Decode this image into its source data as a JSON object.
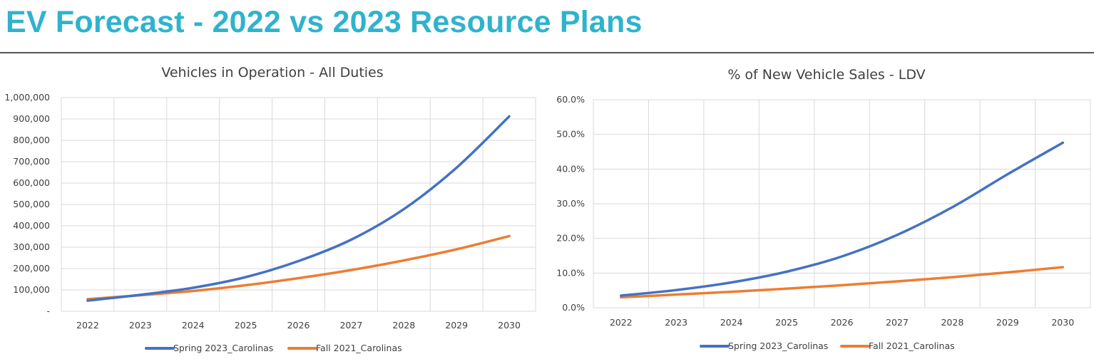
{
  "page": {
    "title": "EV Forecast - 2022 vs 2023 Resource Plans"
  },
  "colors": {
    "title": "#2fb3cd",
    "spring": "#4472c4",
    "fall": "#ed7d31"
  },
  "chart_data": [
    {
      "type": "line",
      "title": "Vehicles in Operation - All Duties",
      "categories": [
        "2022",
        "2023",
        "2024",
        "2025",
        "2026",
        "2027",
        "2028",
        "2029",
        "2030"
      ],
      "series": [
        {
          "name": "Spring 2023_Carolinas",
          "values": [
            50000,
            77000,
            110000,
            160000,
            235000,
            335000,
            478000,
            672000,
            912000
          ]
        },
        {
          "name": "Fall 2021_Carolinas",
          "values": [
            57000,
            75000,
            95000,
            122000,
            155000,
            193000,
            238000,
            290000,
            352000
          ]
        }
      ],
      "ylim": [
        0,
        1000000
      ],
      "yticks": [
        0,
        100000,
        200000,
        300000,
        400000,
        500000,
        600000,
        700000,
        800000,
        900000,
        1000000
      ],
      "ytick_labels": [
        "-",
        "100,000",
        "200,000",
        "300,000",
        "400,000",
        "500,000",
        "600,000",
        "700,000",
        "800,000",
        "900,000",
        "1,000,000"
      ],
      "xlabel": "",
      "ylabel": "",
      "legend": "bottom",
      "grid": true
    },
    {
      "type": "line",
      "title": "% of New Vehicle Sales - LDV",
      "categories": [
        "2022",
        "2023",
        "2024",
        "2025",
        "2026",
        "2027",
        "2028",
        "2029",
        "2030"
      ],
      "series": [
        {
          "name": "Spring 2023_Carolinas",
          "values": [
            3.5,
            5.1,
            7.3,
            10.4,
            14.8,
            21.0,
            29.0,
            38.5,
            47.6
          ]
        },
        {
          "name": "Fall 2021_Carolinas",
          "values": [
            3.0,
            3.8,
            4.6,
            5.5,
            6.5,
            7.6,
            8.8,
            10.2,
            11.7
          ]
        }
      ],
      "ylim": [
        0,
        60
      ],
      "yticks": [
        0,
        10,
        20,
        30,
        40,
        50,
        60
      ],
      "ytick_labels": [
        "0.0%",
        "10.0%",
        "20.0%",
        "30.0%",
        "40.0%",
        "50.0%",
        "60.0%"
      ],
      "xlabel": "",
      "ylabel": "",
      "legend": "bottom",
      "grid": true
    }
  ]
}
